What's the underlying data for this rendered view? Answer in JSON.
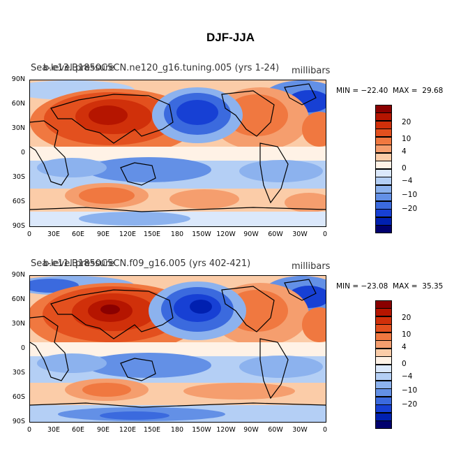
{
  "title": "DJF-JJA",
  "units": "millibars",
  "x_ticks": [
    "0",
    "30E",
    "60E",
    "90E",
    "120E",
    "150E",
    "180",
    "150W",
    "120W",
    "90W",
    "60W",
    "30W",
    "0"
  ],
  "y_ticks": [
    "90N",
    "60N",
    "30N",
    "0",
    "30S",
    "60S",
    "90S"
  ],
  "colorbar": {
    "colors": [
      "#8a0000",
      "#b51500",
      "#d0300a",
      "#e3501e",
      "#f07840",
      "#f59e6e",
      "#fbcca8",
      "#fff2e6",
      "#dbe8fb",
      "#b4cff5",
      "#8cb2ee",
      "#6390e6",
      "#3b6ade",
      "#1740d4",
      "#0020b0",
      "#00006e"
    ],
    "labels": [
      "20",
      "10",
      "4",
      "0",
      "−4",
      "−10",
      "−20"
    ]
  },
  "panels": [
    {
      "title_left": "Sea-level pressure",
      "title_overlap": "b.e13.B1850C5CN.ne120_g16.tuning.005 (yrs 1-24)",
      "min_max": "MIN = −22.40  MAX =  29.68"
    },
    {
      "title_left": "Sea-level pressure",
      "title_overlap": "b.e11.B1850C5CN.f09_g16.005 (yrs 402-421)",
      "min_max": "MIN = −23.08  MAX =  35.35"
    }
  ]
}
